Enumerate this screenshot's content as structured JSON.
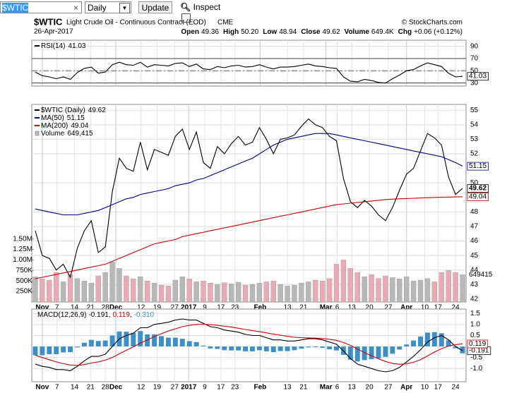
{
  "toolbar": {
    "symbol": "$WTIC",
    "period": "Daily",
    "button": "Update",
    "inspect": "Inspect"
  },
  "header": {
    "symbol": "$WTIC",
    "name": "Light Crude Oil - Continuous Contract (EOD)",
    "exchange": "CME",
    "source": "© StockCharts.com",
    "date": "26-Apr-2017",
    "quote": [
      [
        "Open",
        "49.36"
      ],
      [
        "High",
        "50.20"
      ],
      [
        "Low",
        "48.94"
      ],
      [
        "Close",
        "49.62"
      ],
      [
        "Volume",
        "649.4K"
      ],
      [
        "Chg",
        "+0.06 (+0.12%)"
      ]
    ]
  },
  "chart_data": [
    {
      "type": "line",
      "xlim": [
        -0.5,
        61.5
      ],
      "xticks": [
        {
          "value": 1.0,
          "label": "Nov",
          "major": true
        },
        {
          "value": 3.1,
          "label": "7"
        },
        {
          "value": 5.6,
          "label": "14"
        },
        {
          "value": 7.9,
          "label": "21"
        },
        {
          "value": 10.0,
          "label": "28"
        },
        {
          "value": 11.5,
          "label": "Dec",
          "major": true
        },
        {
          "value": 15.1,
          "label": "12"
        },
        {
          "value": 17.4,
          "label": "19"
        },
        {
          "value": 19.9,
          "label": "27"
        },
        {
          "value": 21.9,
          "label": "2017",
          "major": true
        },
        {
          "value": 24.2,
          "label": "9"
        },
        {
          "value": 26.5,
          "label": "17"
        },
        {
          "value": 28.5,
          "label": "23"
        },
        {
          "value": 32.1,
          "label": "Feb",
          "major": true
        },
        {
          "value": 36.0,
          "label": "13"
        },
        {
          "value": 38.3,
          "label": "21"
        },
        {
          "value": 41.5,
          "label": "Mar",
          "major": true
        },
        {
          "value": 43.1,
          "label": "6"
        },
        {
          "value": 45.2,
          "label": "13"
        },
        {
          "value": 47.7,
          "label": "20"
        },
        {
          "value": 50.4,
          "label": "27"
        },
        {
          "value": 53.0,
          "label": "Apr",
          "major": true
        },
        {
          "value": 55.6,
          "label": "10"
        },
        {
          "value": 57.5,
          "label": "17"
        },
        {
          "value": 60.0,
          "label": "24"
        }
      ],
      "ylim": [
        25,
        100
      ],
      "yticks": [
        30,
        50,
        70,
        90
      ],
      "grid": true,
      "levels": [
        30,
        70
      ],
      "midline": 50,
      "series": [
        {
          "name": "RSI(14)",
          "color": "#000000",
          "values": [
            48,
            42,
            40,
            37,
            40,
            36,
            47,
            54,
            56,
            46,
            48,
            60,
            64,
            60,
            59,
            64,
            56,
            60,
            59,
            58,
            62,
            63,
            57,
            61,
            53,
            52,
            57,
            55,
            58,
            59,
            56,
            57,
            60,
            56,
            53,
            56,
            56,
            57,
            59,
            61,
            58,
            57,
            55,
            54,
            40,
            33,
            32,
            36,
            34,
            31,
            30,
            37,
            43,
            50,
            52,
            58,
            63,
            60,
            57,
            46,
            40,
            41.03
          ]
        }
      ]
    },
    {
      "type": "line",
      "xlim": [
        -0.5,
        61.5
      ],
      "xlabels": true,
      "xticks": [
        {
          "value": 1.0,
          "label": "Nov",
          "major": true
        },
        {
          "value": 3.1,
          "label": "7"
        },
        {
          "value": 5.6,
          "label": "14"
        },
        {
          "value": 7.9,
          "label": "21"
        },
        {
          "value": 10.0,
          "label": "28"
        },
        {
          "value": 11.5,
          "label": "Dec",
          "major": true
        },
        {
          "value": 15.1,
          "label": "12"
        },
        {
          "value": 17.4,
          "label": "19"
        },
        {
          "value": 19.9,
          "label": "27"
        },
        {
          "value": 21.9,
          "label": "2017",
          "major": true
        },
        {
          "value": 24.2,
          "label": "9"
        },
        {
          "value": 26.5,
          "label": "17"
        },
        {
          "value": 28.5,
          "label": "23"
        },
        {
          "value": 32.1,
          "label": "Feb",
          "major": true
        },
        {
          "value": 36.0,
          "label": "13"
        },
        {
          "value": 38.3,
          "label": "21"
        },
        {
          "value": 41.5,
          "label": "Mar",
          "major": true
        },
        {
          "value": 43.1,
          "label": "6"
        },
        {
          "value": 45.2,
          "label": "13"
        },
        {
          "value": 47.7,
          "label": "20"
        },
        {
          "value": 50.4,
          "label": "27"
        },
        {
          "value": 53.0,
          "label": "Apr",
          "major": true
        },
        {
          "value": 55.6,
          "label": "10"
        },
        {
          "value": 57.5,
          "label": "17"
        },
        {
          "value": 60.0,
          "label": "24"
        }
      ],
      "ylim": [
        41.8,
        55.4
      ],
      "yticks": [
        42,
        43,
        44,
        45,
        46,
        47,
        48,
        50,
        52,
        53,
        54,
        55
      ],
      "grid": true,
      "y2lim": [
        0,
        4700000
      ],
      "y2ticks": [
        {
          "value": 250000,
          "label": "250K"
        },
        {
          "value": 500000,
          "label": "500K"
        },
        {
          "value": 750000,
          "label": "750K"
        },
        {
          "value": 1000000,
          "label": "1.00M"
        },
        {
          "value": 1250000,
          "label": "1.25M"
        },
        {
          "value": 1500000,
          "label": "1.50M"
        }
      ],
      "series": [
        {
          "name": "$WTIC (Daily)",
          "color": "#000000",
          "label_bold": true,
          "values": [
            46.7,
            45.0,
            44.8,
            44.0,
            44.4,
            43.5,
            45.5,
            46.7,
            47.4,
            45.2,
            45.6,
            49.4,
            51.7,
            51.0,
            50.8,
            52.8,
            50.9,
            52.3,
            52.1,
            51.9,
            53.2,
            53.7,
            52.3,
            53.5,
            51.4,
            51.0,
            52.5,
            52.0,
            52.7,
            53.2,
            52.6,
            52.8,
            53.8,
            53.0,
            52.0,
            53.0,
            53.1,
            53.3,
            53.9,
            54.4,
            54.0,
            53.8,
            53.2,
            52.9,
            50.3,
            48.7,
            48.3,
            48.8,
            48.4,
            47.8,
            47.4,
            48.3,
            49.5,
            50.6,
            51.0,
            52.2,
            53.4,
            53.1,
            52.6,
            50.4,
            49.2,
            49.62
          ]
        },
        {
          "name": "MA(50)",
          "color": "#00008b",
          "values": [
            48.2,
            48.1,
            48.0,
            47.9,
            47.8,
            47.8,
            47.8,
            47.9,
            48.0,
            48.1,
            48.3,
            48.5,
            48.7,
            48.9,
            49.0,
            49.2,
            49.3,
            49.4,
            49.5,
            49.6,
            49.8,
            49.9,
            50.0,
            50.2,
            50.3,
            50.5,
            50.7,
            50.9,
            51.1,
            51.3,
            51.5,
            51.7,
            52.0,
            52.3,
            52.6,
            52.8,
            53.0,
            53.1,
            53.2,
            53.3,
            53.4,
            53.4,
            53.4,
            53.3,
            53.2,
            53.1,
            53.0,
            52.9,
            52.8,
            52.7,
            52.6,
            52.5,
            52.4,
            52.3,
            52.2,
            52.1,
            52.0,
            51.9,
            51.8,
            51.6,
            51.4,
            51.15
          ]
        },
        {
          "name": "MA(200)",
          "color": "#cc0000",
          "values": [
            43.4,
            43.5,
            43.6,
            43.7,
            43.8,
            43.9,
            44.0,
            44.1,
            44.2,
            44.3,
            44.4,
            44.6,
            44.8,
            45.0,
            45.2,
            45.4,
            45.6,
            45.8,
            45.9,
            46.0,
            46.1,
            46.3,
            46.4,
            46.5,
            46.6,
            46.7,
            46.8,
            46.9,
            47.0,
            47.1,
            47.2,
            47.3,
            47.4,
            47.5,
            47.6,
            47.7,
            47.8,
            47.9,
            48.0,
            48.1,
            48.2,
            48.3,
            48.4,
            48.5,
            48.55,
            48.6,
            48.65,
            48.7,
            48.75,
            48.8,
            48.85,
            48.88,
            48.9,
            48.92,
            48.94,
            48.96,
            48.98,
            49.0,
            49.01,
            49.02,
            49.03,
            49.04
          ]
        },
        {
          "name": "Volume",
          "type": "bar",
          "axis": "y2",
          "color": "#b8b8b8",
          "down_color": "#e9aab3",
          "legend_label": "649,415",
          "values": [
            600000,
            550000,
            520000,
            700000,
            480000,
            650000,
            560000,
            500000,
            450000,
            620000,
            700000,
            950000,
            800000,
            620000,
            550000,
            600000,
            500000,
            450000,
            400000,
            380000,
            520000,
            600000,
            550000,
            480000,
            500000,
            450000,
            420000,
            460000,
            430000,
            470000,
            400000,
            420000,
            450000,
            480000,
            500000,
            420000,
            380000,
            400000,
            450000,
            480000,
            520000,
            500000,
            560000,
            900000,
            1000000,
            800000,
            700000,
            600000,
            650000,
            560000,
            620000,
            580000,
            550000,
            600000,
            500000,
            520000,
            560000,
            480000,
            700000,
            750000,
            700000,
            649415
          ]
        }
      ]
    },
    {
      "type": "line",
      "xlim": [
        -0.5,
        61.5
      ],
      "xlabels": true,
      "xticks": [
        {
          "value": 1.0,
          "label": "Nov",
          "major": true
        },
        {
          "value": 3.1,
          "label": "7"
        },
        {
          "value": 5.6,
          "label": "14"
        },
        {
          "value": 7.9,
          "label": "21"
        },
        {
          "value": 10.0,
          "label": "28"
        },
        {
          "value": 11.5,
          "label": "Dec",
          "major": true
        },
        {
          "value": 15.1,
          "label": "12"
        },
        {
          "value": 17.4,
          "label": "19"
        },
        {
          "value": 19.9,
          "label": "27"
        },
        {
          "value": 21.9,
          "label": "2017",
          "major": true
        },
        {
          "value": 24.2,
          "label": "9"
        },
        {
          "value": 26.5,
          "label": "17"
        },
        {
          "value": 28.5,
          "label": "23"
        },
        {
          "value": 32.1,
          "label": "Feb",
          "major": true
        },
        {
          "value": 36.0,
          "label": "13"
        },
        {
          "value": 38.3,
          "label": "21"
        },
        {
          "value": 41.5,
          "label": "Mar",
          "major": true
        },
        {
          "value": 43.1,
          "label": "6"
        },
        {
          "value": 45.2,
          "label": "13"
        },
        {
          "value": 47.7,
          "label": "20"
        },
        {
          "value": 50.4,
          "label": "27"
        },
        {
          "value": 53.0,
          "label": "Apr",
          "major": true
        },
        {
          "value": 55.6,
          "label": "10"
        },
        {
          "value": 57.5,
          "label": "17"
        },
        {
          "value": 60.0,
          "label": "24"
        }
      ],
      "ylim": [
        -1.6,
        1.7
      ],
      "yticks": [
        1.5,
        {
          "value": 1,
          "label": "1.0"
        },
        0.5,
        -0.5,
        {
          "value": -1,
          "label": "-1.0"
        }
      ],
      "grid": true,
      "legend_separator": ",",
      "series": [
        {
          "name": "MACD(12,26,9)",
          "color": "#000000",
          "values": [
            -0.8,
            -0.9,
            -0.95,
            -1.05,
            -1.05,
            -1.1,
            -0.9,
            -0.65,
            -0.45,
            -0.45,
            -0.35,
            0.0,
            0.35,
            0.5,
            0.6,
            0.85,
            0.85,
            1.0,
            1.05,
            1.1,
            1.2,
            1.25,
            1.2,
            1.2,
            1.05,
            0.9,
            0.85,
            0.75,
            0.7,
            0.65,
            0.55,
            0.5,
            0.5,
            0.4,
            0.3,
            0.3,
            0.25,
            0.25,
            0.3,
            0.35,
            0.35,
            0.3,
            0.2,
            0.1,
            -0.2,
            -0.55,
            -0.8,
            -0.9,
            -1.0,
            -1.1,
            -1.15,
            -1.1,
            -0.95,
            -0.7,
            -0.45,
            -0.15,
            0.2,
            0.4,
            0.5,
            0.3,
            0.0,
            -0.191
          ]
        },
        {
          "color": "#cc0000",
          "values": [
            -0.4,
            -0.5,
            -0.6,
            -0.7,
            -0.78,
            -0.84,
            -0.86,
            -0.82,
            -0.75,
            -0.7,
            -0.62,
            -0.5,
            -0.33,
            -0.17,
            -0.02,
            0.15,
            0.3,
            0.45,
            0.58,
            0.7,
            0.8,
            0.9,
            0.96,
            1.0,
            1.01,
            0.99,
            0.96,
            0.92,
            0.88,
            0.83,
            0.77,
            0.72,
            0.67,
            0.62,
            0.56,
            0.51,
            0.46,
            0.42,
            0.4,
            0.39,
            0.38,
            0.36,
            0.33,
            0.28,
            0.18,
            0.05,
            -0.12,
            -0.28,
            -0.42,
            -0.56,
            -0.68,
            -0.77,
            -0.81,
            -0.79,
            -0.72,
            -0.6,
            -0.43,
            -0.25,
            -0.1,
            0.02,
            0.08,
            0.119
          ]
        },
        {
          "type": "bar",
          "color": "#3d8fc7",
          "legend_label": "-0.310",
          "end_label": false,
          "values": [
            -0.4,
            -0.4,
            -0.35,
            -0.35,
            -0.27,
            -0.26,
            -0.04,
            0.17,
            0.3,
            0.25,
            0.27,
            0.5,
            0.68,
            0.67,
            0.62,
            0.7,
            0.55,
            0.55,
            0.47,
            0.4,
            0.4,
            0.35,
            0.24,
            0.2,
            0.04,
            -0.09,
            -0.11,
            -0.17,
            -0.18,
            -0.18,
            -0.22,
            -0.22,
            -0.17,
            -0.22,
            -0.26,
            -0.21,
            -0.21,
            -0.17,
            -0.1,
            -0.04,
            -0.03,
            -0.06,
            -0.13,
            -0.18,
            -0.38,
            -0.6,
            -0.68,
            -0.62,
            -0.58,
            -0.54,
            -0.47,
            -0.33,
            -0.14,
            0.09,
            0.27,
            0.45,
            0.63,
            0.65,
            0.6,
            0.28,
            -0.08,
            -0.31
          ]
        }
      ]
    }
  ]
}
